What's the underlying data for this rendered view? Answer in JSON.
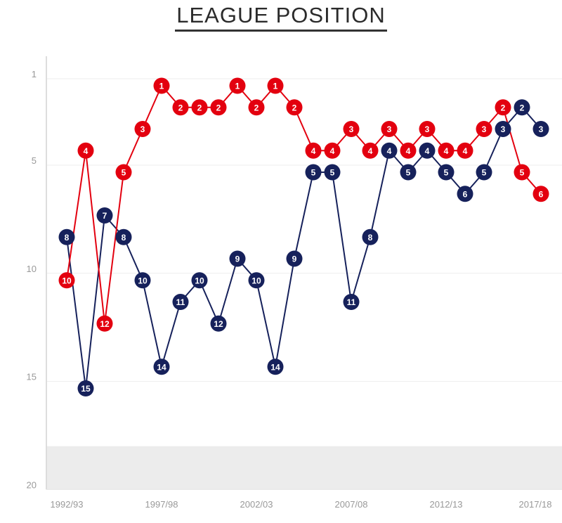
{
  "chart_data": {
    "type": "line",
    "title": "LEAGUE POSITION",
    "xlabel": "",
    "ylabel": "",
    "x": [
      "1992/93",
      "1993/94",
      "1994/95",
      "1995/96",
      "1996/97",
      "1997/98",
      "1998/99",
      "1999/00",
      "2000/01",
      "2001/02",
      "2002/03",
      "2003/04",
      "2004/05",
      "2005/06",
      "2006/07",
      "2007/08",
      "2008/09",
      "2009/10",
      "2010/11",
      "2011/12",
      "2012/13",
      "2013/14",
      "2014/15",
      "2015/16",
      "2016/17",
      "2017/18"
    ],
    "x_tick_labels": [
      "1992/93",
      "1997/98",
      "2002/03",
      "2007/08",
      "2012/13",
      "2017/18"
    ],
    "y_ticks": [
      1,
      5,
      10,
      15,
      20
    ],
    "ylim": [
      1,
      20
    ],
    "y_inverted": true,
    "shaded_zone": [
      18,
      20
    ],
    "grid": true,
    "series": [
      {
        "name": "red",
        "color": "#e3000f",
        "values": [
          10,
          4,
          12,
          5,
          3,
          1,
          2,
          2,
          2,
          1,
          2,
          1,
          2,
          4,
          4,
          3,
          4,
          3,
          4,
          3,
          4,
          4,
          3,
          2,
          5,
          6
        ]
      },
      {
        "name": "navy",
        "color": "#16215b",
        "values": [
          8,
          15,
          7,
          8,
          10,
          14,
          11,
          10,
          12,
          9,
          10,
          14,
          9,
          5,
          5,
          11,
          8,
          4,
          5,
          4,
          5,
          6,
          5,
          3,
          2,
          3
        ]
      }
    ]
  }
}
